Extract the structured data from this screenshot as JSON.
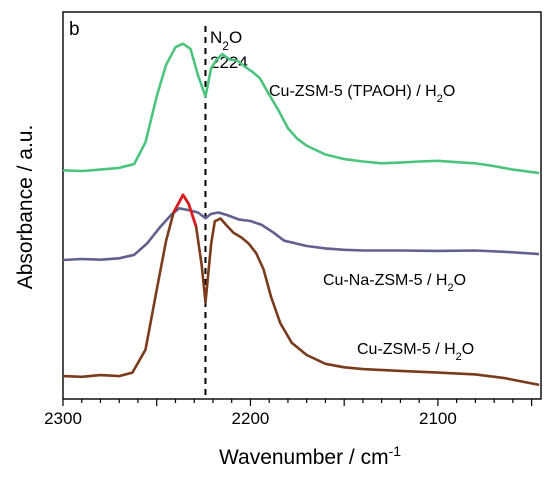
{
  "chart_data": {
    "type": "line",
    "panel_letter": "b",
    "xlabel": "Wavenumber / cm",
    "xlabel_sup": "-1",
    "ylabel": "Absorbance / a.u.",
    "xlim": [
      2300,
      2045
    ],
    "x_reversed": true,
    "x_ticks": [
      2300,
      2200,
      2100
    ],
    "y_ticks_shown": false,
    "reference_line": {
      "x": 2224,
      "style": "dashed",
      "label_main": "N",
      "label_sub": "2",
      "label_tail": "O",
      "label_value": "2224"
    },
    "series": [
      {
        "name_main": "Cu-ZSM-5 (TPAOH) / H",
        "name_sub": "2",
        "name_tail": "O",
        "color": "#4dc47d",
        "points": [
          [
            2300,
            0.6
          ],
          [
            2290,
            0.598
          ],
          [
            2280,
            0.602
          ],
          [
            2270,
            0.607
          ],
          [
            2262,
            0.618
          ],
          [
            2256,
            0.68
          ],
          [
            2250,
            0.81
          ],
          [
            2245,
            0.9
          ],
          [
            2240,
            0.95
          ],
          [
            2236,
            0.96
          ],
          [
            2232,
            0.945
          ],
          [
            2228,
            0.87
          ],
          [
            2224,
            0.81
          ],
          [
            2221,
            0.89
          ],
          [
            2218,
            0.915
          ],
          [
            2215,
            0.93
          ],
          [
            2211,
            0.915
          ],
          [
            2207,
            0.912
          ],
          [
            2203,
            0.895
          ],
          [
            2199,
            0.88
          ],
          [
            2195,
            0.862
          ],
          [
            2190,
            0.815
          ],
          [
            2185,
            0.77
          ],
          [
            2180,
            0.72
          ],
          [
            2175,
            0.69
          ],
          [
            2170,
            0.67
          ],
          [
            2160,
            0.645
          ],
          [
            2150,
            0.632
          ],
          [
            2140,
            0.625
          ],
          [
            2130,
            0.62
          ],
          [
            2120,
            0.622
          ],
          [
            2110,
            0.625
          ],
          [
            2100,
            0.627
          ],
          [
            2090,
            0.623
          ],
          [
            2080,
            0.62
          ],
          [
            2070,
            0.612
          ],
          [
            2060,
            0.602
          ],
          [
            2046,
            0.592
          ]
        ]
      },
      {
        "name_main": "Cu-Na-ZSM-5 / H",
        "name_sub": "2",
        "name_tail": "O",
        "color": "#61618f",
        "points": [
          [
            2300,
            0.345
          ],
          [
            2290,
            0.348
          ],
          [
            2280,
            0.346
          ],
          [
            2270,
            0.35
          ],
          [
            2262,
            0.36
          ],
          [
            2255,
            0.393
          ],
          [
            2248,
            0.44
          ],
          [
            2242,
            0.475
          ],
          [
            2238,
            0.492
          ],
          [
            2233,
            0.487
          ],
          [
            2228,
            0.48
          ],
          [
            2224,
            0.464
          ],
          [
            2221,
            0.476
          ],
          [
            2217,
            0.48
          ],
          [
            2212,
            0.472
          ],
          [
            2206,
            0.46
          ],
          [
            2200,
            0.456
          ],
          [
            2194,
            0.445
          ],
          [
            2188,
            0.424
          ],
          [
            2182,
            0.4
          ],
          [
            2170,
            0.385
          ],
          [
            2160,
            0.378
          ],
          [
            2150,
            0.374
          ],
          [
            2140,
            0.372
          ],
          [
            2120,
            0.372
          ],
          [
            2100,
            0.371
          ],
          [
            2080,
            0.372
          ],
          [
            2060,
            0.367
          ],
          [
            2046,
            0.362
          ]
        ]
      },
      {
        "name_main": "Cu-ZSM-5 / H",
        "name_sub": "2",
        "name_tail": "O",
        "color": "#7a3b1d",
        "peak_color": "#d81e1e",
        "points": [
          [
            2300,
            0.015
          ],
          [
            2290,
            0.013
          ],
          [
            2280,
            0.018
          ],
          [
            2270,
            0.015
          ],
          [
            2263,
            0.025
          ],
          [
            2256,
            0.09
          ],
          [
            2250,
            0.26
          ],
          [
            2245,
            0.4
          ],
          [
            2241,
            0.48
          ],
          [
            2236,
            0.53
          ],
          [
            2233,
            0.505
          ],
          [
            2229,
            0.44
          ],
          [
            2226,
            0.33
          ],
          [
            2224,
            0.225
          ],
          [
            2221,
            0.39
          ],
          [
            2219,
            0.455
          ],
          [
            2216,
            0.463
          ],
          [
            2213,
            0.445
          ],
          [
            2209,
            0.422
          ],
          [
            2205,
            0.41
          ],
          [
            2201,
            0.392
          ],
          [
            2197,
            0.365
          ],
          [
            2193,
            0.318
          ],
          [
            2189,
            0.24
          ],
          [
            2184,
            0.165
          ],
          [
            2178,
            0.11
          ],
          [
            2170,
            0.075
          ],
          [
            2160,
            0.05
          ],
          [
            2150,
            0.04
          ],
          [
            2140,
            0.035
          ],
          [
            2120,
            0.03
          ],
          [
            2100,
            0.025
          ],
          [
            2080,
            0.02
          ],
          [
            2065,
            0.01
          ],
          [
            2046,
            -0.01
          ]
        ]
      }
    ]
  }
}
